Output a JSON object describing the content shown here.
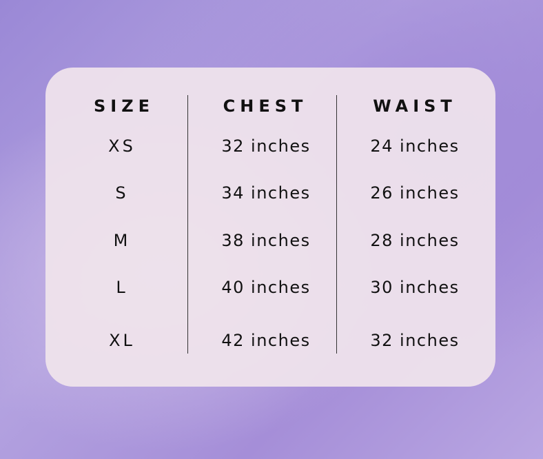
{
  "headers": [
    "SIZE",
    "CHEST",
    "WAIST"
  ],
  "rows": [
    [
      "XS",
      "32 inches",
      "24 inches"
    ],
    [
      "S",
      "34 inches",
      "26 inches"
    ],
    [
      "M",
      "38 inches",
      "28 inches"
    ],
    [
      "L",
      "40 inches",
      "30 inches"
    ],
    [
      "XL",
      "42 inches",
      "32 inches"
    ]
  ]
}
